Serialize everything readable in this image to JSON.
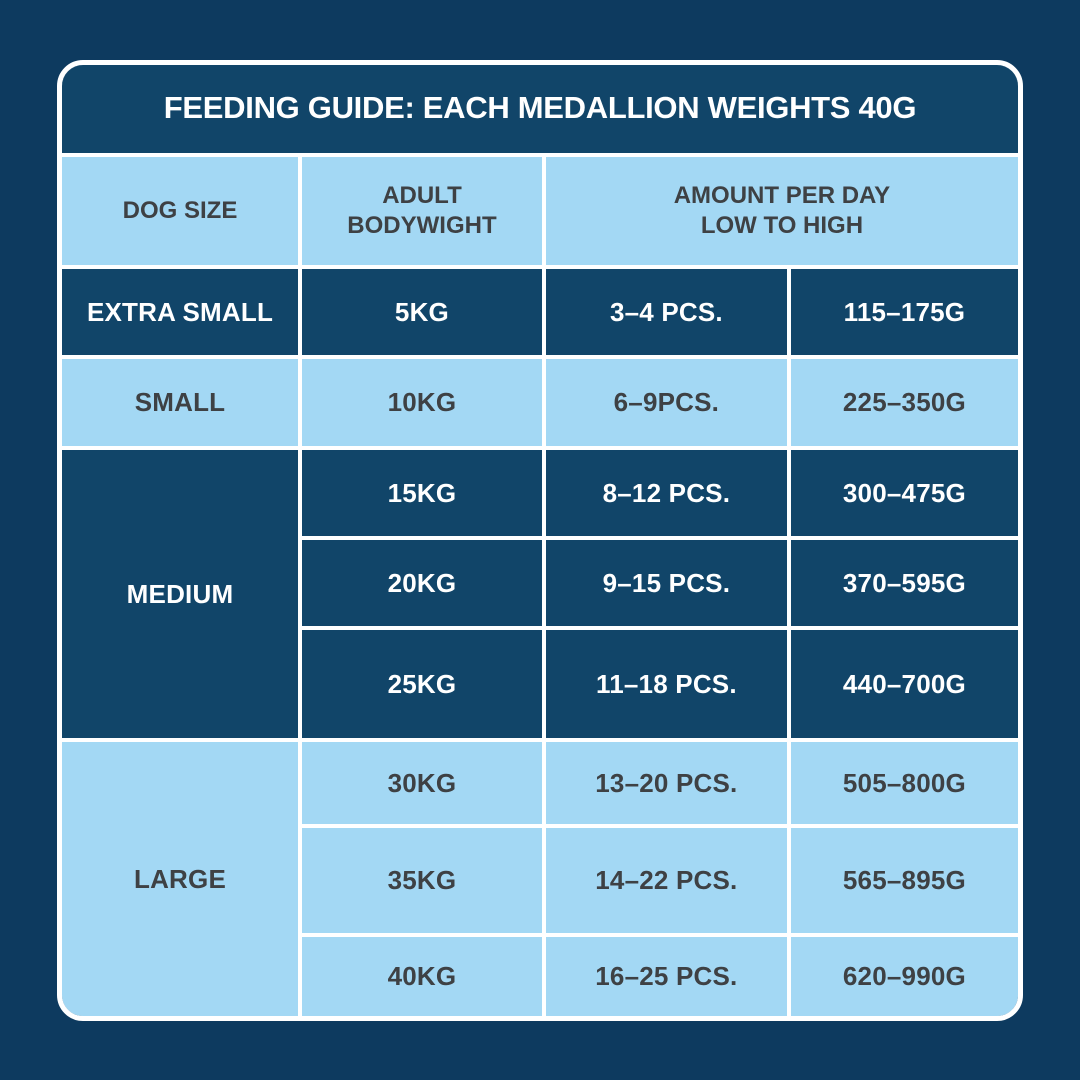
{
  "colors": {
    "background": "#0d3a5f",
    "dark_cell": "#114569",
    "light_cell": "#a3d8f4",
    "grid_line": "#ffffff",
    "dark_text": "#3e4144",
    "light_text": "#ffffff"
  },
  "table": {
    "title": "FEEDING GUIDE: EACH MEDALLION WEIGHTS 40G",
    "headers": {
      "dog_size": "DOG SIZE",
      "bodyweight": "ADULT\nBODYWIGHT",
      "amount": "AMOUNT PER DAY\nLOW TO HIGH"
    },
    "groups": [
      {
        "size": "EXTRA SMALL",
        "shade": "dark",
        "rows": [
          {
            "weight": "5KG",
            "pcs": "3–4 PCS.",
            "grams": "115–175G"
          }
        ]
      },
      {
        "size": "SMALL",
        "shade": "light",
        "rows": [
          {
            "weight": "10KG",
            "pcs": "6–9PCS.",
            "grams": "225–350G"
          }
        ]
      },
      {
        "size": "MEDIUM",
        "shade": "dark",
        "rows": [
          {
            "weight": "15KG",
            "pcs": "8–12 PCS.",
            "grams": "300–475G"
          },
          {
            "weight": "20KG",
            "pcs": "9–15 PCS.",
            "grams": "370–595G"
          },
          {
            "weight": "25KG",
            "pcs": "11–18 PCS.",
            "grams": "440–700G"
          }
        ]
      },
      {
        "size": "LARGE",
        "shade": "light",
        "rows": [
          {
            "weight": "30KG",
            "pcs": "13–20 PCS.",
            "grams": "505–800G"
          },
          {
            "weight": "35KG",
            "pcs": "14–22 PCS.",
            "grams": "565–895G"
          },
          {
            "weight": "40KG",
            "pcs": "16–25 PCS.",
            "grams": "620–990G"
          }
        ]
      }
    ]
  },
  "chart_data": {
    "type": "table",
    "title": "FEEDING GUIDE: EACH MEDALLION WEIGHTS 40G",
    "columns": [
      "DOG SIZE",
      "ADULT BODYWIGHT",
      "AMOUNT PER DAY LOW TO HIGH (PCS.)",
      "AMOUNT PER DAY LOW TO HIGH (G)"
    ],
    "rows": [
      [
        "EXTRA SMALL",
        "5KG",
        "3–4 PCS.",
        "115–175G"
      ],
      [
        "SMALL",
        "10KG",
        "6–9PCS.",
        "225–350G"
      ],
      [
        "MEDIUM",
        "15KG",
        "8–12 PCS.",
        "300–475G"
      ],
      [
        "MEDIUM",
        "20KG",
        "9–15 PCS.",
        "370–595G"
      ],
      [
        "MEDIUM",
        "25KG",
        "11–18 PCS.",
        "440–700G"
      ],
      [
        "LARGE",
        "30KG",
        "13–20 PCS.",
        "505–800G"
      ],
      [
        "LARGE",
        "35KG",
        "14–22 PCS.",
        "565–895G"
      ],
      [
        "LARGE",
        "40KG",
        "16–25 PCS.",
        "620–990G"
      ]
    ],
    "layout": {
      "grid": "white 4px lines",
      "row_group_shading": [
        "dark",
        "light",
        "dark",
        "light"
      ]
    }
  }
}
